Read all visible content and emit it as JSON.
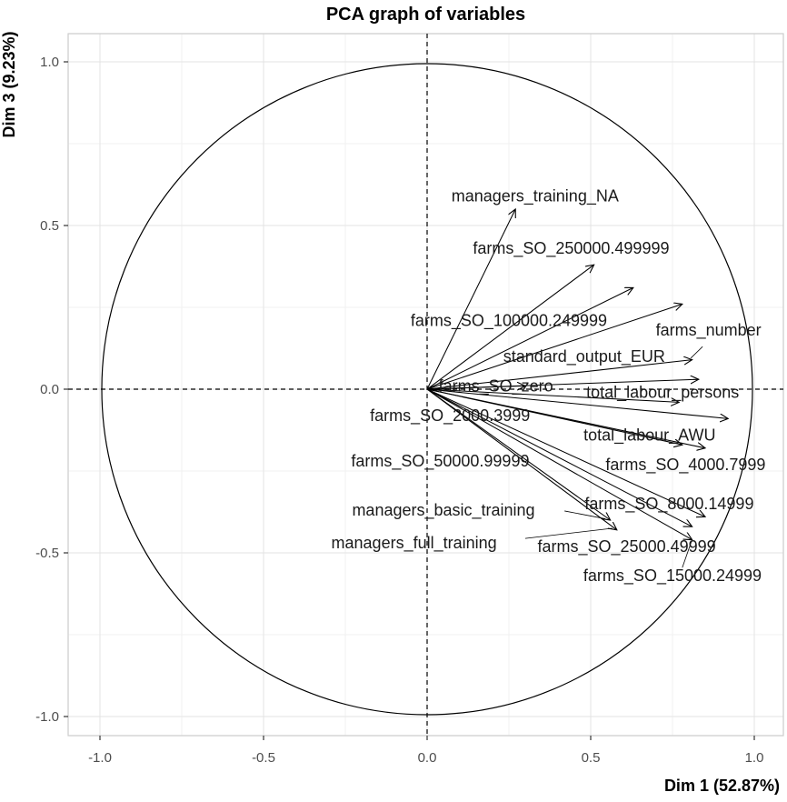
{
  "page": {
    "title": "PCA graph of variables"
  },
  "chart_data": {
    "type": "scatter",
    "subtype": "pca-correlation-circle",
    "title": "PCA graph of variables",
    "xlabel": "Dim 1 (52.87%)",
    "ylabel": "Dim 3 (9.23%)",
    "xlim": [
      -1.1,
      1.1
    ],
    "ylim": [
      -1.1,
      1.1
    ],
    "grid": "major-and-minor",
    "legend": "none",
    "unit_circle": true,
    "dashed_zero_lines": true,
    "xticks": {
      "values": [
        -1.0,
        -0.5,
        0.0,
        0.5,
        1.0
      ],
      "labels": [
        "-1.0",
        "-0.5",
        "0.0",
        "0.5",
        "1.0"
      ]
    },
    "yticks": {
      "values": [
        -1.0,
        -0.5,
        0.0,
        0.5,
        1.0
      ],
      "labels": [
        "-1.0",
        "-0.5",
        "0.0",
        "0.5",
        "1.0"
      ]
    },
    "minor_grid_values": [
      -0.75,
      -0.25,
      0.25,
      0.75
    ],
    "colors": {
      "arrow": "#000000",
      "circle": "#000000",
      "label_text": "#1a1a1a",
      "tick_text": "#4d4d4d",
      "grid_major": "#e3e3e3",
      "grid_minor": "#f1f1f1",
      "panel_border": "#cccccc",
      "background": "#ffffff",
      "title_text": "#000000"
    },
    "variables": [
      {
        "name": "managers_training_NA",
        "dim1": 0.27,
        "dim3": 0.55,
        "label_x": 0.33,
        "label_y": 0.59
      },
      {
        "name": "farms_SO_250000.499999",
        "dim1": 0.51,
        "dim3": 0.38,
        "label_x": 0.44,
        "label_y": 0.43
      },
      {
        "name": "farms_SO_100000.249999",
        "dim1": 0.63,
        "dim3": 0.31,
        "label_x": 0.25,
        "label_y": 0.21
      },
      {
        "name": "farms_number",
        "dim1": 0.78,
        "dim3": 0.26,
        "label_x": 0.86,
        "label_y": 0.18,
        "seg": [
          0.842,
          0.13,
          0.806,
          0.095
        ]
      },
      {
        "name": "standard_output_EUR",
        "dim1": 0.81,
        "dim3": 0.09,
        "label_x": 0.48,
        "label_y": 0.1
      },
      {
        "name": "farms_SO_zero",
        "dim1": 0.3,
        "dim3": 0.01,
        "label_x": 0.21,
        "label_y": 0.01
      },
      {
        "name": "total_labour_persons",
        "dim1": 0.83,
        "dim3": 0.03,
        "label_x": 0.72,
        "label_y": -0.01
      },
      {
        "name": "farms_SO_2000.3999",
        "dim1": 0.77,
        "dim3": -0.04,
        "label_x": 0.07,
        "label_y": -0.08
      },
      {
        "name": "total_labour_AWU",
        "dim1": 0.92,
        "dim3": -0.09,
        "label_x": 0.68,
        "label_y": -0.14
      },
      {
        "name": "farms_SO_50000.99999",
        "dim1": 0.78,
        "dim3": -0.17,
        "label_x": 0.04,
        "label_y": -0.22
      },
      {
        "name": "farms_SO_4000.7999",
        "dim1": 0.85,
        "dim3": -0.18,
        "label_x": 0.79,
        "label_y": -0.23
      },
      {
        "name": "managers_basic_training",
        "dim1": 0.56,
        "dim3": -0.4,
        "label_x": 0.05,
        "label_y": -0.37,
        "seg": [
          0.42,
          -0.372,
          0.545,
          -0.396
        ]
      },
      {
        "name": "farms_SO_8000.14999",
        "dim1": 0.85,
        "dim3": -0.39,
        "label_x": 0.74,
        "label_y": -0.35
      },
      {
        "name": "managers_full_training",
        "dim1": 0.58,
        "dim3": -0.43,
        "label_x": -0.04,
        "label_y": -0.47,
        "seg": [
          0.3,
          -0.456,
          0.566,
          -0.425
        ]
      },
      {
        "name": "farms_SO_25000.49999",
        "dim1": 0.81,
        "dim3": -0.42,
        "label_x": 0.61,
        "label_y": -0.48
      },
      {
        "name": "farms_SO_15000.24999",
        "dim1": 0.81,
        "dim3": -0.46,
        "label_x": 0.75,
        "label_y": -0.57,
        "seg": [
          0.78,
          -0.545,
          0.808,
          -0.465
        ]
      }
    ]
  }
}
